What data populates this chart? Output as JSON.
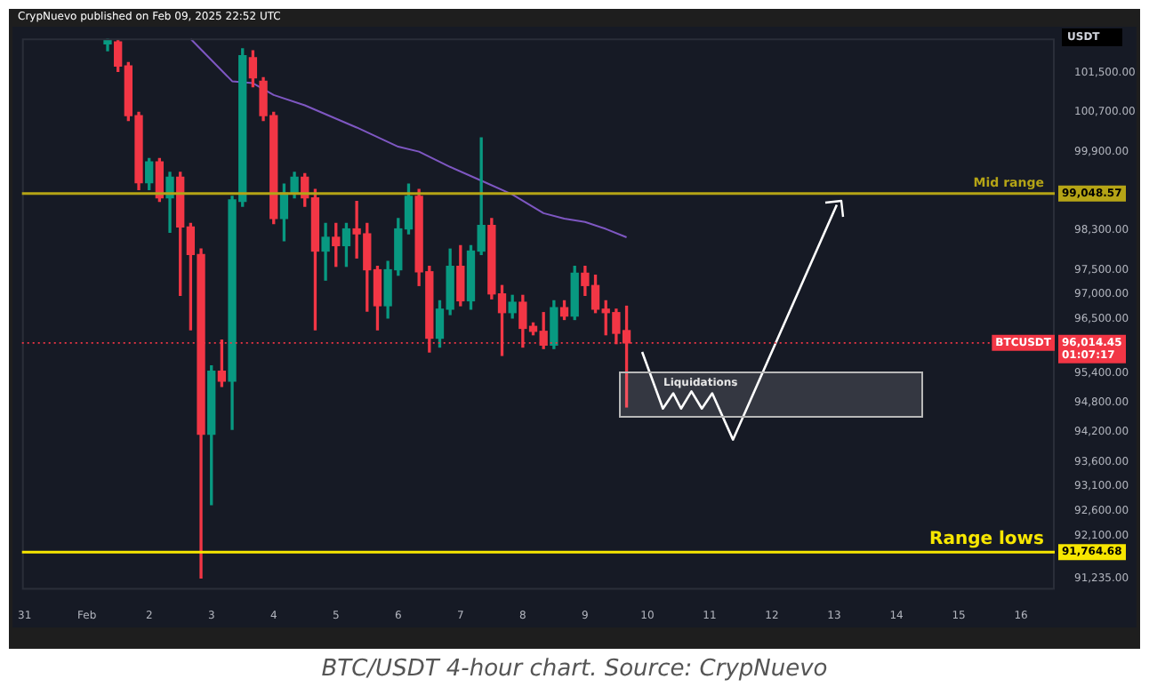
{
  "chart_data": {
    "type": "candlestick",
    "title": "BTC/USDT 4-hour chart. Source: CrypNuevo",
    "subtitle": "CrypNuevo published on Feb 09, 2025 22:52 UTC",
    "ylabel": "USDT",
    "annotations": [
      "Liquidations",
      "99,048.57",
      "91,764.68",
      "96,014.45",
      "01:07:17"
    ],
    "xlim": [
      "2025-01-30T23:00",
      "2025-02-16T13:00"
    ],
    "xticks": [
      {
        "value": "2025-01-31",
        "label": "31"
      },
      {
        "value": "2025-02-01",
        "label": "Feb"
      },
      {
        "value": "2025-02-02",
        "label": "2"
      },
      {
        "value": "2025-02-03",
        "label": "3"
      },
      {
        "value": "2025-02-04",
        "label": "4"
      },
      {
        "value": "2025-02-05",
        "label": "5"
      },
      {
        "value": "2025-02-06",
        "label": "6"
      },
      {
        "value": "2025-02-07",
        "label": "7"
      },
      {
        "value": "2025-02-08",
        "label": "8"
      },
      {
        "value": "2025-02-09",
        "label": "9"
      },
      {
        "value": "2025-02-10",
        "label": "10"
      },
      {
        "value": "2025-02-11",
        "label": "11"
      },
      {
        "value": "2025-02-12",
        "label": "12"
      },
      {
        "value": "2025-02-13",
        "label": "13"
      },
      {
        "value": "2025-02-14",
        "label": "14"
      },
      {
        "value": "2025-02-15",
        "label": "15"
      },
      {
        "value": "2025-02-16",
        "label": "16"
      }
    ],
    "ylim": [
      91000,
      102200
    ],
    "yticks": [
      {
        "value": 91235,
        "label": "91,235.00"
      },
      {
        "value": 92100,
        "label": "92,100.00"
      },
      {
        "value": 92600,
        "label": "92,600.00"
      },
      {
        "value": 93100,
        "label": "93,100.00"
      },
      {
        "value": 93600,
        "label": "93,600.00"
      },
      {
        "value": 94200,
        "label": "94,200.00"
      },
      {
        "value": 94800,
        "label": "94,800.00"
      },
      {
        "value": 95400,
        "label": "95,400.00"
      },
      {
        "value": 96500,
        "label": "96,500.00"
      },
      {
        "value": 97000,
        "label": "97,000.00"
      },
      {
        "value": 97500,
        "label": "97,500.00"
      },
      {
        "value": 98300,
        "label": "98,300.00"
      },
      {
        "value": 99900,
        "label": "99,900.00"
      },
      {
        "value": 100700,
        "label": "100,700.00"
      },
      {
        "value": 101500,
        "label": "101,500.00"
      }
    ],
    "ref_lines": [
      {
        "axis": "y",
        "value": 99048.57,
        "label": "Mid range",
        "color": "#b5a416",
        "line_style": "solid"
      },
      {
        "axis": "y",
        "value": 91764.68,
        "label": "Range lows",
        "color": "#f7e600",
        "line_style": "solid"
      },
      {
        "axis": "y",
        "value": 96014.45,
        "label": "BTCUSDT",
        "color": "#f23645",
        "line_style": "dotted"
      }
    ],
    "series": [
      {
        "type": "candlestick",
        "x": [
          "2025-02-01T08:00",
          "2025-02-01T12:00",
          "2025-02-01T16:00",
          "2025-02-01T20:00",
          "2025-02-02T00:00",
          "2025-02-02T04:00",
          "2025-02-02T08:00",
          "2025-02-02T12:00",
          "2025-02-02T16:00",
          "2025-02-02T20:00",
          "2025-02-03T00:00",
          "2025-02-03T04:00",
          "2025-02-03T08:00",
          "2025-02-03T12:00",
          "2025-02-03T16:00",
          "2025-02-03T20:00",
          "2025-02-04T00:00",
          "2025-02-04T04:00",
          "2025-02-04T08:00",
          "2025-02-04T12:00",
          "2025-02-04T16:00",
          "2025-02-04T20:00",
          "2025-02-05T00:00",
          "2025-02-05T04:00",
          "2025-02-05T08:00",
          "2025-02-05T12:00",
          "2025-02-05T16:00",
          "2025-02-05T20:00",
          "2025-02-06T00:00",
          "2025-02-06T04:00",
          "2025-02-06T08:00",
          "2025-02-06T12:00",
          "2025-02-06T16:00",
          "2025-02-06T20:00",
          "2025-02-07T00:00",
          "2025-02-07T04:00",
          "2025-02-07T08:00",
          "2025-02-07T12:00",
          "2025-02-07T16:00",
          "2025-02-07T20:00",
          "2025-02-08T00:00",
          "2025-02-08T04:00",
          "2025-02-08T08:00",
          "2025-02-08T12:00",
          "2025-02-08T16:00",
          "2025-02-08T20:00",
          "2025-02-09T00:00",
          "2025-02-09T04:00",
          "2025-02-09T08:00",
          "2025-02-09T12:00",
          "2025-02-09T16:00"
        ],
        "ohlc": [
          [
            102090,
            102190,
            101950,
            102160
          ],
          [
            102130,
            102160,
            101530,
            101640
          ],
          [
            101640,
            101710,
            100530,
            100630
          ],
          [
            100630,
            100700,
            99130,
            99270
          ],
          [
            99270,
            99760,
            99130,
            99690
          ],
          [
            99690,
            99760,
            98890,
            98960
          ],
          [
            98960,
            99480,
            98260,
            99380
          ],
          [
            99380,
            99480,
            96980,
            98370
          ],
          [
            98370,
            98440,
            96280,
            97810
          ],
          [
            97810,
            97920,
            91240,
            94160
          ],
          [
            94160,
            95550,
            92730,
            95440
          ],
          [
            95440,
            96070,
            95130,
            95240
          ],
          [
            95240,
            98990,
            94260,
            98920
          ],
          [
            98890,
            101990,
            98790,
            101850
          ],
          [
            101810,
            101950,
            101220,
            101400
          ],
          [
            101330,
            101400,
            100530,
            100630
          ],
          [
            100630,
            100700,
            98440,
            98540
          ],
          [
            98540,
            99240,
            98090,
            99060
          ],
          [
            99060,
            99480,
            98960,
            99380
          ],
          [
            99380,
            99450,
            98790,
            98960
          ],
          [
            98960,
            99130,
            96280,
            97880
          ],
          [
            97880,
            98440,
            97290,
            98160
          ],
          [
            98160,
            98440,
            97570,
            97990
          ],
          [
            97990,
            98440,
            97570,
            98330
          ],
          [
            98330,
            98890,
            97740,
            98230
          ],
          [
            98230,
            98440,
            96660,
            97500
          ],
          [
            97500,
            97570,
            96280,
            96770
          ],
          [
            96770,
            97670,
            96520,
            97500
          ],
          [
            97500,
            98540,
            97390,
            98330
          ],
          [
            98330,
            99240,
            98230,
            98990
          ],
          [
            98990,
            99130,
            97180,
            97460
          ],
          [
            97460,
            97570,
            95830,
            96110
          ],
          [
            96110,
            96870,
            95930,
            96700
          ],
          [
            96700,
            97920,
            96590,
            97570
          ],
          [
            97570,
            97990,
            96770,
            96870
          ],
          [
            96870,
            97990,
            96700,
            97880
          ],
          [
            97880,
            100180,
            97810,
            98400
          ],
          [
            98400,
            98540,
            96910,
            97010
          ],
          [
            97010,
            97180,
            95760,
            96630
          ],
          [
            96630,
            96980,
            96520,
            96840
          ],
          [
            96840,
            96980,
            95930,
            96310
          ],
          [
            96350,
            96420,
            96180,
            96250
          ],
          [
            96250,
            96630,
            95900,
            95970
          ],
          [
            95970,
            96870,
            95900,
            96730
          ],
          [
            96730,
            96870,
            96490,
            96560
          ],
          [
            96560,
            97570,
            96490,
            97430
          ],
          [
            97430,
            97570,
            96980,
            97180
          ],
          [
            97180,
            97390,
            96630,
            96700
          ],
          [
            96700,
            96870,
            96180,
            96630
          ],
          [
            96630,
            96700,
            96000,
            96210
          ],
          [
            96264.73,
            96760,
            94713,
            96014.45
          ]
        ],
        "colors": [
          "#089981",
          "#f23645",
          "#f23645",
          "#f23645",
          "#089981",
          "#f23645",
          "#089981",
          "#f23645",
          "#f23645",
          "#f23645",
          "#089981",
          "#f23645",
          "#089981",
          "#089981",
          "#f23645",
          "#f23645",
          "#f23645",
          "#089981",
          "#089981",
          "#f23645",
          "#f23645",
          "#089981",
          "#f23645",
          "#089981",
          "#f23645",
          "#f23645",
          "#f23645",
          "#089981",
          "#089981",
          "#089981",
          "#f23645",
          "#f23645",
          "#089981",
          "#089981",
          "#f23645",
          "#089981",
          "#089981",
          "#f23645",
          "#f23645",
          "#089981",
          "#f23645",
          "#f23645",
          "#f23645",
          "#089981",
          "#f23645",
          "#089981",
          "#f23645",
          "#f23645",
          "#f23645",
          "#f23645",
          "#f23645"
        ]
      },
      {
        "type": "line",
        "color": "#7e57c2",
        "x": [
          "2025-02-02T16:00",
          "2025-02-03T08:00",
          "2025-02-03T16:00",
          "2025-02-04T00:00",
          "2025-02-04T12:00",
          "2025-02-05T08:00",
          "2025-02-06T00:00",
          "2025-02-06T08:00",
          "2025-02-06T20:00",
          "2025-02-07T08:00",
          "2025-02-07T20:00",
          "2025-02-08T08:00",
          "2025-02-08T16:00",
          "2025-02-09T00:00",
          "2025-02-09T08:00",
          "2025-02-09T16:00"
        ],
        "values": [
          102190,
          101330,
          101290,
          101050,
          100840,
          100390,
          100000,
          99900,
          99590,
          99310,
          99030,
          98650,
          98540,
          98470,
          98330,
          98160
        ]
      },
      {
        "type": "line",
        "color": "#ffffff",
        "line_style": "solid",
        "x": [
          "2025-02-09T22:00",
          "2025-02-10T06:00",
          "2025-02-10T10:00",
          "2025-02-10T13:00",
          "2025-02-10T17:00",
          "2025-02-10T21:00",
          "2025-02-11T01:00",
          "2025-02-11T09:00",
          "2025-02-13T01:00"
        ],
        "values": [
          95830,
          94680,
          94990,
          94680,
          95030,
          94680,
          94990,
          94050,
          98820
        ]
      }
    ]
  }
}
